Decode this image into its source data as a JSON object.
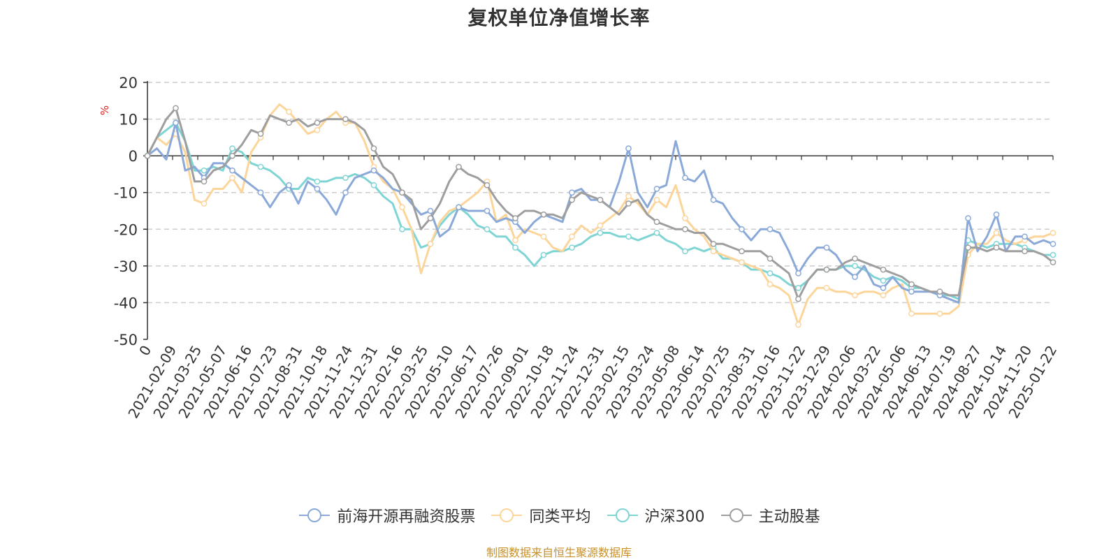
{
  "chart_data": {
    "type": "line",
    "title": "复权单位净值增长率",
    "ylabel": "%",
    "ylim": [
      -50,
      20
    ],
    "yticks": [
      20,
      10,
      0,
      -10,
      -20,
      -30,
      -40,
      -50
    ],
    "grid": true,
    "legend_position": "bottom",
    "x_tick_labels": [
      "0",
      "2021-02-09",
      "2021-03-25",
      "2021-05-07",
      "2021-06-16",
      "2021-07-23",
      "2021-08-31",
      "2021-10-18",
      "2021-11-24",
      "2021-12-31",
      "2022-02-16",
      "2022-03-25",
      "2022-05-10",
      "2022-06-17",
      "2022-07-26",
      "2022-09-01",
      "2022-10-18",
      "2022-11-24",
      "2022-12-31",
      "2023-02-15",
      "2023-03-24",
      "2023-05-08",
      "2023-06-14",
      "2023-07-25",
      "2023-08-31",
      "2023-10-16",
      "2023-11-22",
      "2023-12-29",
      "2024-02-06",
      "2024-03-22",
      "2024-05-06",
      "2024-06-13",
      "2024-07-19",
      "2024-08-27",
      "2024-10-14",
      "2024-11-20",
      "2025-01-22"
    ],
    "series": [
      {
        "name": "前海开源再融资股票",
        "color": "#8aa9d9",
        "values": [
          0,
          2,
          -1,
          9,
          -4,
          -3,
          -6,
          -2,
          -2,
          -4,
          -6,
          -8,
          -10,
          -14,
          -10,
          -8,
          -13,
          -7,
          -9,
          -12,
          -16,
          -10,
          -6,
          -5,
          -4,
          -6,
          -9,
          -10,
          -13,
          -16,
          -15,
          -22,
          -20,
          -14,
          -15,
          -15,
          -15,
          -18,
          -17,
          -18,
          -21,
          -18,
          -16,
          -17,
          -18,
          -10,
          -9,
          -12,
          -12,
          -14,
          -7,
          2,
          -10,
          -14,
          -9,
          -8,
          4,
          -6,
          -7,
          -4,
          -12,
          -13,
          -17,
          -20,
          -23,
          -20,
          -20,
          -21,
          -26,
          -32,
          -28,
          -25,
          -25,
          -27,
          -31,
          -33,
          -30,
          -35,
          -36,
          -33,
          -36,
          -37,
          -37,
          -37,
          -38,
          -39,
          -40,
          -17,
          -26,
          -22,
          -16,
          -26,
          -22,
          -22,
          -24,
          -23,
          -24
        ]
      },
      {
        "name": "同类平均",
        "color": "#fcd59a",
        "values": [
          0,
          5,
          3,
          6,
          1,
          -12,
          -13,
          -9,
          -9,
          -6,
          -10,
          1,
          5,
          11,
          14,
          12,
          9,
          6,
          7,
          10,
          12,
          9,
          9,
          4,
          -3,
          -7,
          -9,
          -14,
          -20,
          -32,
          -24,
          -18,
          -15,
          -14,
          -12,
          -10,
          -7,
          -18,
          -16,
          -23,
          -20,
          -21,
          -22,
          -25,
          -26,
          -22,
          -19,
          -21,
          -19,
          -17,
          -15,
          -11,
          -13,
          -16,
          -12,
          -14,
          -8,
          -17,
          -20,
          -22,
          -26,
          -27,
          -28,
          -29,
          -30,
          -31,
          -35,
          -36,
          -38,
          -46,
          -39,
          -36,
          -36,
          -37,
          -37,
          -38,
          -37,
          -37,
          -38,
          -36,
          -35,
          -43,
          -43,
          -43,
          -43,
          -43,
          -41,
          -27,
          -24,
          -24,
          -21,
          -23,
          -24,
          -23,
          -22,
          -22,
          -21
        ]
      },
      {
        "name": "沪深300",
        "color": "#7fd4d4",
        "values": [
          0,
          5,
          7,
          9,
          4,
          -4,
          -4,
          -3,
          -4,
          2,
          1,
          -2,
          -3,
          -4,
          -6,
          -9,
          -9,
          -6,
          -7,
          -7,
          -6,
          -6,
          -5,
          -6,
          -8,
          -11,
          -13,
          -20,
          -20,
          -25,
          -24,
          -19,
          -16,
          -14,
          -16,
          -19,
          -20,
          -22,
          -22,
          -25,
          -27,
          -30,
          -27,
          -26,
          -26,
          -25,
          -24,
          -22,
          -21,
          -21,
          -22,
          -22,
          -23,
          -22,
          -21,
          -23,
          -24,
          -26,
          -25,
          -26,
          -25,
          -28,
          -28,
          -29,
          -31,
          -31,
          -32,
          -33,
          -35,
          -36,
          -34,
          -31,
          -31,
          -31,
          -30,
          -30,
          -31,
          -33,
          -34,
          -33,
          -34,
          -36,
          -36,
          -37,
          -38,
          -38,
          -39,
          -23,
          -24,
          -25,
          -24,
          -24,
          -24,
          -25,
          -26,
          -27,
          -27
        ]
      },
      {
        "name": "主动股基",
        "color": "#9e9e9e",
        "values": [
          0,
          5,
          10,
          13,
          4,
          -7,
          -7,
          -4,
          -3,
          0,
          3,
          7,
          6,
          11,
          10,
          9,
          10,
          8,
          9,
          10,
          10,
          10,
          9,
          7,
          2,
          -3,
          -5,
          -10,
          -12,
          -20,
          -17,
          -13,
          -7,
          -3,
          -5,
          -6,
          -8,
          -12,
          -15,
          -17,
          -15,
          -15,
          -16,
          -16,
          -17,
          -12,
          -10,
          -11,
          -12,
          -14,
          -16,
          -13,
          -12,
          -16,
          -18,
          -19,
          -20,
          -20,
          -21,
          -21,
          -24,
          -24,
          -25,
          -26,
          -26,
          -26,
          -28,
          -30,
          -32,
          -39,
          -34,
          -31,
          -31,
          -31,
          -29,
          -28,
          -29,
          -30,
          -31,
          -32,
          -33,
          -35,
          -36,
          -37,
          -37,
          -38,
          -38,
          -25,
          -25,
          -26,
          -25,
          -26,
          -26,
          -26,
          -26,
          -27,
          -29
        ]
      }
    ]
  },
  "footer": {
    "source": "制图数据来自恒生聚源数据库"
  }
}
